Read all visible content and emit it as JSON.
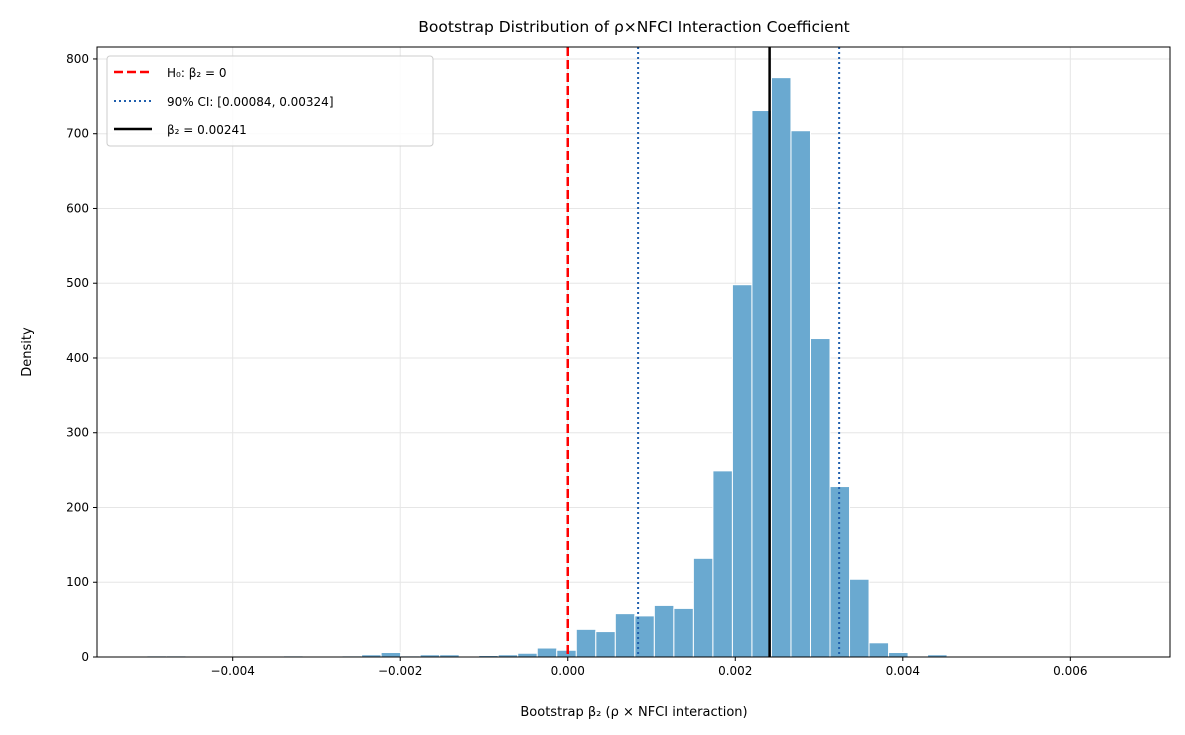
{
  "chart_data": {
    "type": "bar",
    "title": "Bootstrap Distribution of ρ×NFCI Interaction Coefficient",
    "xlabel": "Bootstrap β₂ (ρ × NFCI interaction)",
    "ylabel": "Density",
    "xlim": [
      -0.00562,
      0.00719
    ],
    "ylim": [
      0,
      816
    ],
    "grid": true,
    "legend_placement": "top-left",
    "x_ticks": [
      -0.004,
      -0.002,
      0.0,
      0.002,
      0.004,
      0.006
    ],
    "x_tick_labels": [
      "−0.004",
      "−0.002",
      "0.000",
      "0.002",
      "0.004",
      "0.006"
    ],
    "y_ticks": [
      0,
      100,
      200,
      300,
      400,
      500,
      600,
      700,
      800
    ],
    "y_tick_labels": [
      "0",
      "100",
      "200",
      "300",
      "400",
      "500",
      "600",
      "700",
      "800"
    ],
    "bin_width": 0.000233,
    "bin_left_edges": [
      -0.005024,
      -0.004791,
      -0.003393,
      -0.002694,
      -0.002461,
      -0.002228,
      -0.001995,
      -0.001762,
      -0.001529,
      -0.001063,
      -0.00083,
      -0.000597,
      -0.000364,
      -0.000131,
      0.000102,
      0.000335,
      0.000568,
      0.000801,
      0.001034,
      0.001267,
      0.0015,
      0.001733,
      0.001966,
      0.002199,
      0.002432,
      0.002665,
      0.002898,
      0.003131,
      0.003364,
      0.003597,
      0.00383,
      0.004296,
      0.004529,
      0.004762,
      0.005228,
      0.006393
    ],
    "density": [
      1.5,
      1.5,
      1.5,
      1.5,
      3,
      6,
      1.5,
      3,
      3,
      2,
      3,
      5,
      12,
      9,
      37,
      34,
      58,
      55,
      69,
      65,
      132,
      249,
      498,
      731,
      775,
      704,
      426,
      228,
      104,
      19,
      6,
      3,
      1,
      1,
      1,
      1
    ],
    "bar_color": "#6aa9d0",
    "reference_lines": [
      {
        "label": "H₀: β₂ = 0",
        "x": 0,
        "color": "#ff0000",
        "style": "dashed"
      },
      {
        "label": "90% CI: [0.00084, 0.00324]",
        "x": [
          0.00084,
          0.00324
        ],
        "color": "#1f5fad",
        "style": "dotted"
      },
      {
        "label": "β₂ = 0.00241",
        "x": 0.00241,
        "color": "#000000",
        "style": "solid"
      }
    ]
  }
}
